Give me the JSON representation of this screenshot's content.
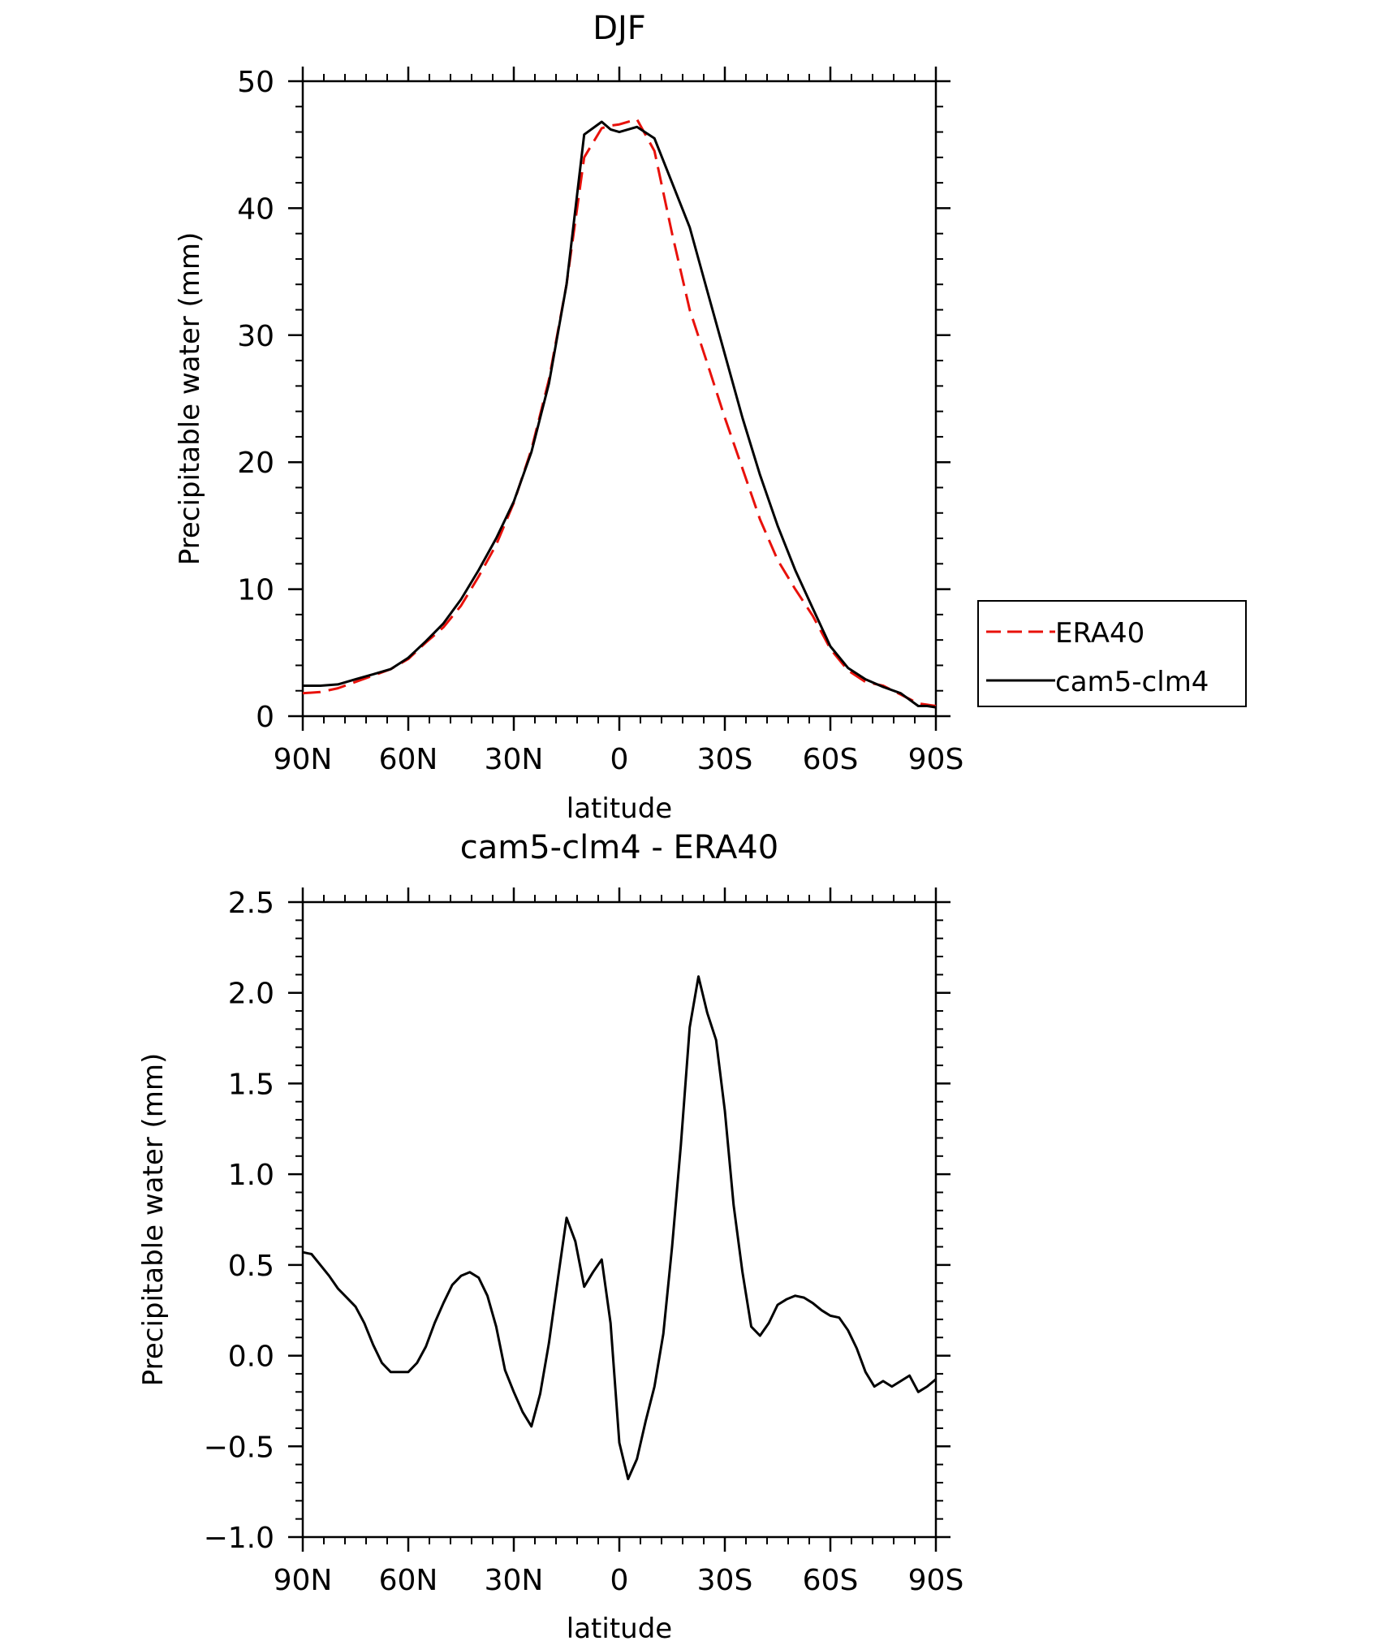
{
  "chart_data": [
    {
      "type": "line",
      "title": "DJF",
      "xlabel": "latitude",
      "ylabel": "Precipitable water (mm)",
      "xlim": [
        90,
        -90
      ],
      "ylim": [
        0,
        50
      ],
      "xticks": [
        90,
        60,
        30,
        0,
        -30,
        -60,
        -90
      ],
      "xtick_labels": [
        "90N",
        "60N",
        "30N",
        "0",
        "30S",
        "60S",
        "90S"
      ],
      "yticks": [
        0,
        10,
        20,
        30,
        40,
        50
      ],
      "ytick_labels": [
        "0",
        "10",
        "20",
        "30",
        "40",
        "50"
      ],
      "legend": "outside-right",
      "series": [
        {
          "name": "ERA40",
          "color": "#e8110b",
          "dash": "dashed",
          "x": [
            90,
            85,
            80,
            75,
            70,
            65,
            60,
            55,
            50,
            45,
            40,
            35,
            30,
            25,
            20,
            15,
            10,
            5,
            2.5,
            0,
            -5,
            -10,
            -15,
            -20,
            -25,
            -30,
            -35,
            -40,
            -45,
            -50,
            -55,
            -60,
            -65,
            -70,
            -75,
            -80,
            -85,
            -87.5,
            -90
          ],
          "y": [
            1.8,
            1.9,
            2.2,
            2.7,
            3.2,
            3.7,
            4.5,
            5.8,
            7.0,
            8.7,
            11.0,
            13.5,
            16.8,
            21.0,
            26.5,
            34.0,
            44.0,
            46.3,
            46.5,
            46.6,
            47.0,
            44.5,
            38.0,
            32.0,
            27.8,
            23.5,
            19.5,
            15.5,
            12.3,
            10.0,
            7.9,
            5.3,
            3.6,
            2.7,
            2.4,
            1.7,
            1.0,
            0.9,
            0.8
          ]
        },
        {
          "name": "cam5-clm4",
          "color": "#000000",
          "dash": "solid",
          "x": [
            90,
            85,
            80,
            75,
            70,
            65,
            60,
            55,
            50,
            45,
            40,
            35,
            30,
            25,
            20,
            15,
            10,
            5,
            2.5,
            0,
            -5,
            -10,
            -15,
            -20,
            -25,
            -30,
            -35,
            -40,
            -45,
            -50,
            -55,
            -60,
            -65,
            -70,
            -75,
            -80,
            -85,
            -87.5,
            -90
          ],
          "y": [
            2.4,
            2.4,
            2.5,
            2.9,
            3.3,
            3.7,
            4.6,
            5.9,
            7.3,
            9.2,
            11.5,
            14.0,
            16.9,
            20.8,
            26.2,
            34.0,
            45.8,
            46.8,
            46.2,
            46.0,
            46.4,
            45.5,
            42.0,
            38.5,
            33.5,
            28.5,
            23.5,
            19.0,
            15.0,
            11.5,
            8.5,
            5.5,
            3.8,
            2.9,
            2.3,
            1.8,
            0.8,
            0.8,
            0.7
          ]
        }
      ]
    },
    {
      "type": "line",
      "title": "cam5-clm4 - ERA40",
      "xlabel": "latitude",
      "ylabel": "Precipitable water (mm)",
      "xlim": [
        90,
        -90
      ],
      "ylim": [
        -1.0,
        2.5
      ],
      "xticks": [
        90,
        60,
        30,
        0,
        -30,
        -60,
        -90
      ],
      "xtick_labels": [
        "90N",
        "60N",
        "30N",
        "0",
        "30S",
        "60S",
        "90S"
      ],
      "yticks": [
        -1.0,
        -0.5,
        0.0,
        0.5,
        1.0,
        1.5,
        2.0,
        2.5
      ],
      "ytick_labels": [
        "−1.0",
        "−0.5",
        "0.0",
        "0.5",
        "1.0",
        "1.5",
        "2.0",
        "2.5"
      ],
      "series": [
        {
          "color": "#000000",
          "dash": "solid",
          "x": [
            90,
            87.5,
            85,
            82.5,
            80,
            77.5,
            75,
            72.5,
            70,
            67.5,
            65,
            62.5,
            60,
            57.5,
            55,
            52.5,
            50,
            47.5,
            45,
            42.5,
            40,
            37.5,
            35,
            32.5,
            30,
            27.5,
            25,
            22.5,
            20,
            17.5,
            15,
            12.5,
            10,
            7.5,
            5,
            2.5,
            0,
            -2.5,
            -5,
            -7.5,
            -10,
            -12.5,
            -15,
            -17.5,
            -20,
            -22.5,
            -25,
            -27.5,
            -30,
            -32.5,
            -35,
            -37.5,
            -40,
            -42.5,
            -45,
            -47.5,
            -50,
            -52.5,
            -55,
            -57.5,
            -60,
            -62.5,
            -65,
            -67.5,
            -70,
            -72.5,
            -75,
            -77.5,
            -80,
            -82.5,
            -85,
            -87.5,
            -90
          ],
          "y": [
            0.57,
            0.56,
            0.5,
            0.44,
            0.37,
            0.32,
            0.27,
            0.18,
            0.06,
            -0.04,
            -0.09,
            -0.09,
            -0.09,
            -0.04,
            0.05,
            0.18,
            0.29,
            0.39,
            0.44,
            0.46,
            0.43,
            0.33,
            0.16,
            -0.08,
            -0.2,
            -0.31,
            -0.39,
            -0.21,
            0.07,
            0.42,
            0.76,
            0.63,
            0.38,
            0.46,
            0.53,
            0.18,
            -0.48,
            -0.68,
            -0.57,
            -0.36,
            -0.17,
            0.12,
            0.6,
            1.16,
            1.81,
            2.09,
            1.89,
            1.74,
            1.35,
            0.83,
            0.46,
            0.16,
            0.11,
            0.18,
            0.28,
            0.31,
            0.33,
            0.32,
            0.29,
            0.25,
            0.22,
            0.21,
            0.14,
            0.04,
            -0.09,
            -0.17,
            -0.14,
            -0.17,
            -0.14,
            -0.11,
            -0.2,
            -0.17,
            -0.13
          ]
        }
      ]
    }
  ]
}
